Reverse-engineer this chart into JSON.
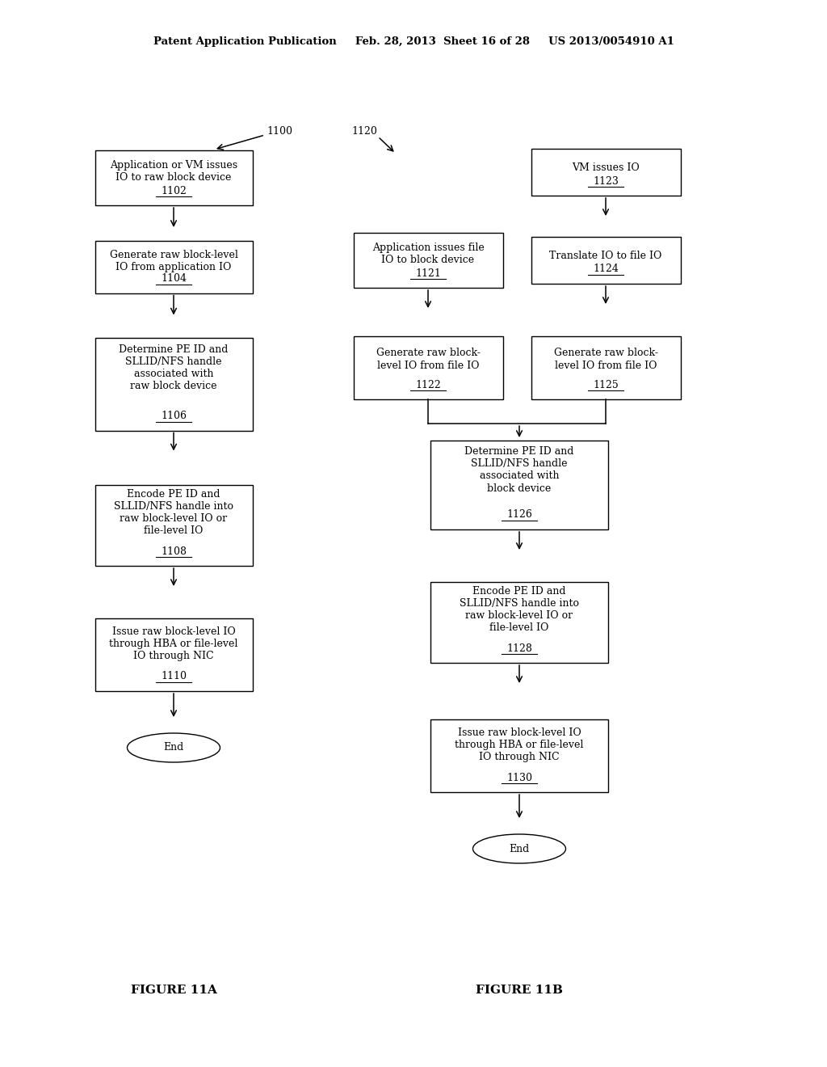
{
  "bg_color": "#ffffff",
  "header": "Patent Application Publication     Feb. 28, 2013  Sheet 16 of 28     US 2013/0054910 A1",
  "fig11a_label": "FIGURE 11A",
  "fig11b_label": "FIGURE 11B",
  "fig_width": 10.24,
  "fig_height": 13.2,
  "dpi": 100
}
